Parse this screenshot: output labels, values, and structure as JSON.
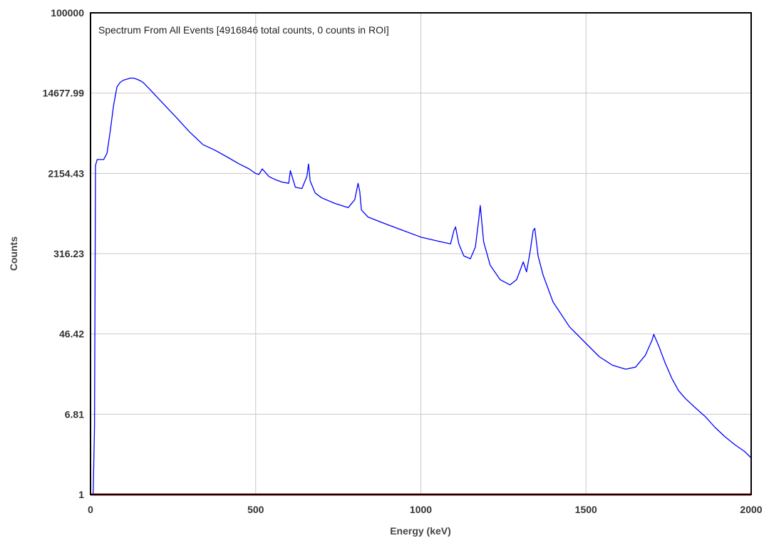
{
  "chart_data": {
    "type": "line",
    "title": "Spectrum From All Events [4916846 total counts, 0 counts in ROI]",
    "xlabel": "Energy (keV)",
    "ylabel": "Counts",
    "x_scale": "linear",
    "y_scale": "log",
    "xlim": [
      0,
      2000
    ],
    "ylim": [
      1,
      100000
    ],
    "x_ticks": [
      "0",
      "500",
      "1000",
      "1500",
      "2000"
    ],
    "y_ticks": [
      "1",
      "6.81",
      "46.42",
      "316.23",
      "2154.43",
      "14677.99",
      "100000"
    ],
    "grid": true,
    "series": [
      {
        "color": "#0000ff",
        "x": [
          0,
          5,
          8,
          12,
          15,
          20,
          30,
          40,
          50,
          60,
          70,
          80,
          90,
          100,
          110,
          120,
          130,
          140,
          150,
          160,
          180,
          200,
          230,
          260,
          300,
          320,
          340,
          380,
          420,
          450,
          480,
          500,
          510,
          520,
          540,
          560,
          580,
          600,
          605,
          620,
          640,
          655,
          660,
          665,
          680,
          700,
          740,
          780,
          800,
          810,
          815,
          820,
          840,
          880,
          940,
          1000,
          1060,
          1090,
          1100,
          1105,
          1115,
          1130,
          1150,
          1165,
          1175,
          1180,
          1190,
          1210,
          1240,
          1270,
          1290,
          1300,
          1310,
          1320,
          1330,
          1340,
          1345,
          1355,
          1370,
          1400,
          1450,
          1500,
          1540,
          1580,
          1620,
          1650,
          1680,
          1700,
          1705,
          1720,
          1740,
          1760,
          1780,
          1800,
          1830,
          1860,
          1890,
          1920,
          1950,
          1980,
          2000
        ],
        "y": [
          1,
          1,
          1,
          5,
          2600,
          3000,
          3000,
          3000,
          3500,
          6000,
          11000,
          17000,
          19000,
          20000,
          20500,
          21000,
          21000,
          20500,
          19800,
          18800,
          16000,
          13500,
          10500,
          8200,
          5800,
          5000,
          4300,
          3700,
          3100,
          2700,
          2400,
          2150,
          2100,
          2400,
          2000,
          1850,
          1750,
          1700,
          2300,
          1550,
          1500,
          2000,
          2700,
          1800,
          1350,
          1200,
          1050,
          950,
          1150,
          1700,
          1400,
          900,
          760,
          670,
          560,
          470,
          420,
          400,
          550,
          600,
          400,
          300,
          280,
          370,
          700,
          1000,
          420,
          240,
          170,
          150,
          170,
          210,
          260,
          205,
          320,
          550,
          580,
          300,
          190,
          100,
          55,
          37,
          27,
          22,
          20,
          21,
          28,
          40,
          46,
          35,
          23,
          16,
          12,
          10,
          8,
          6.5,
          5,
          4,
          3.3,
          2.8,
          2.4
        ]
      },
      {
        "color": "#cc0000",
        "x": [
          0,
          2000
        ],
        "y": [
          1,
          1
        ]
      }
    ]
  }
}
